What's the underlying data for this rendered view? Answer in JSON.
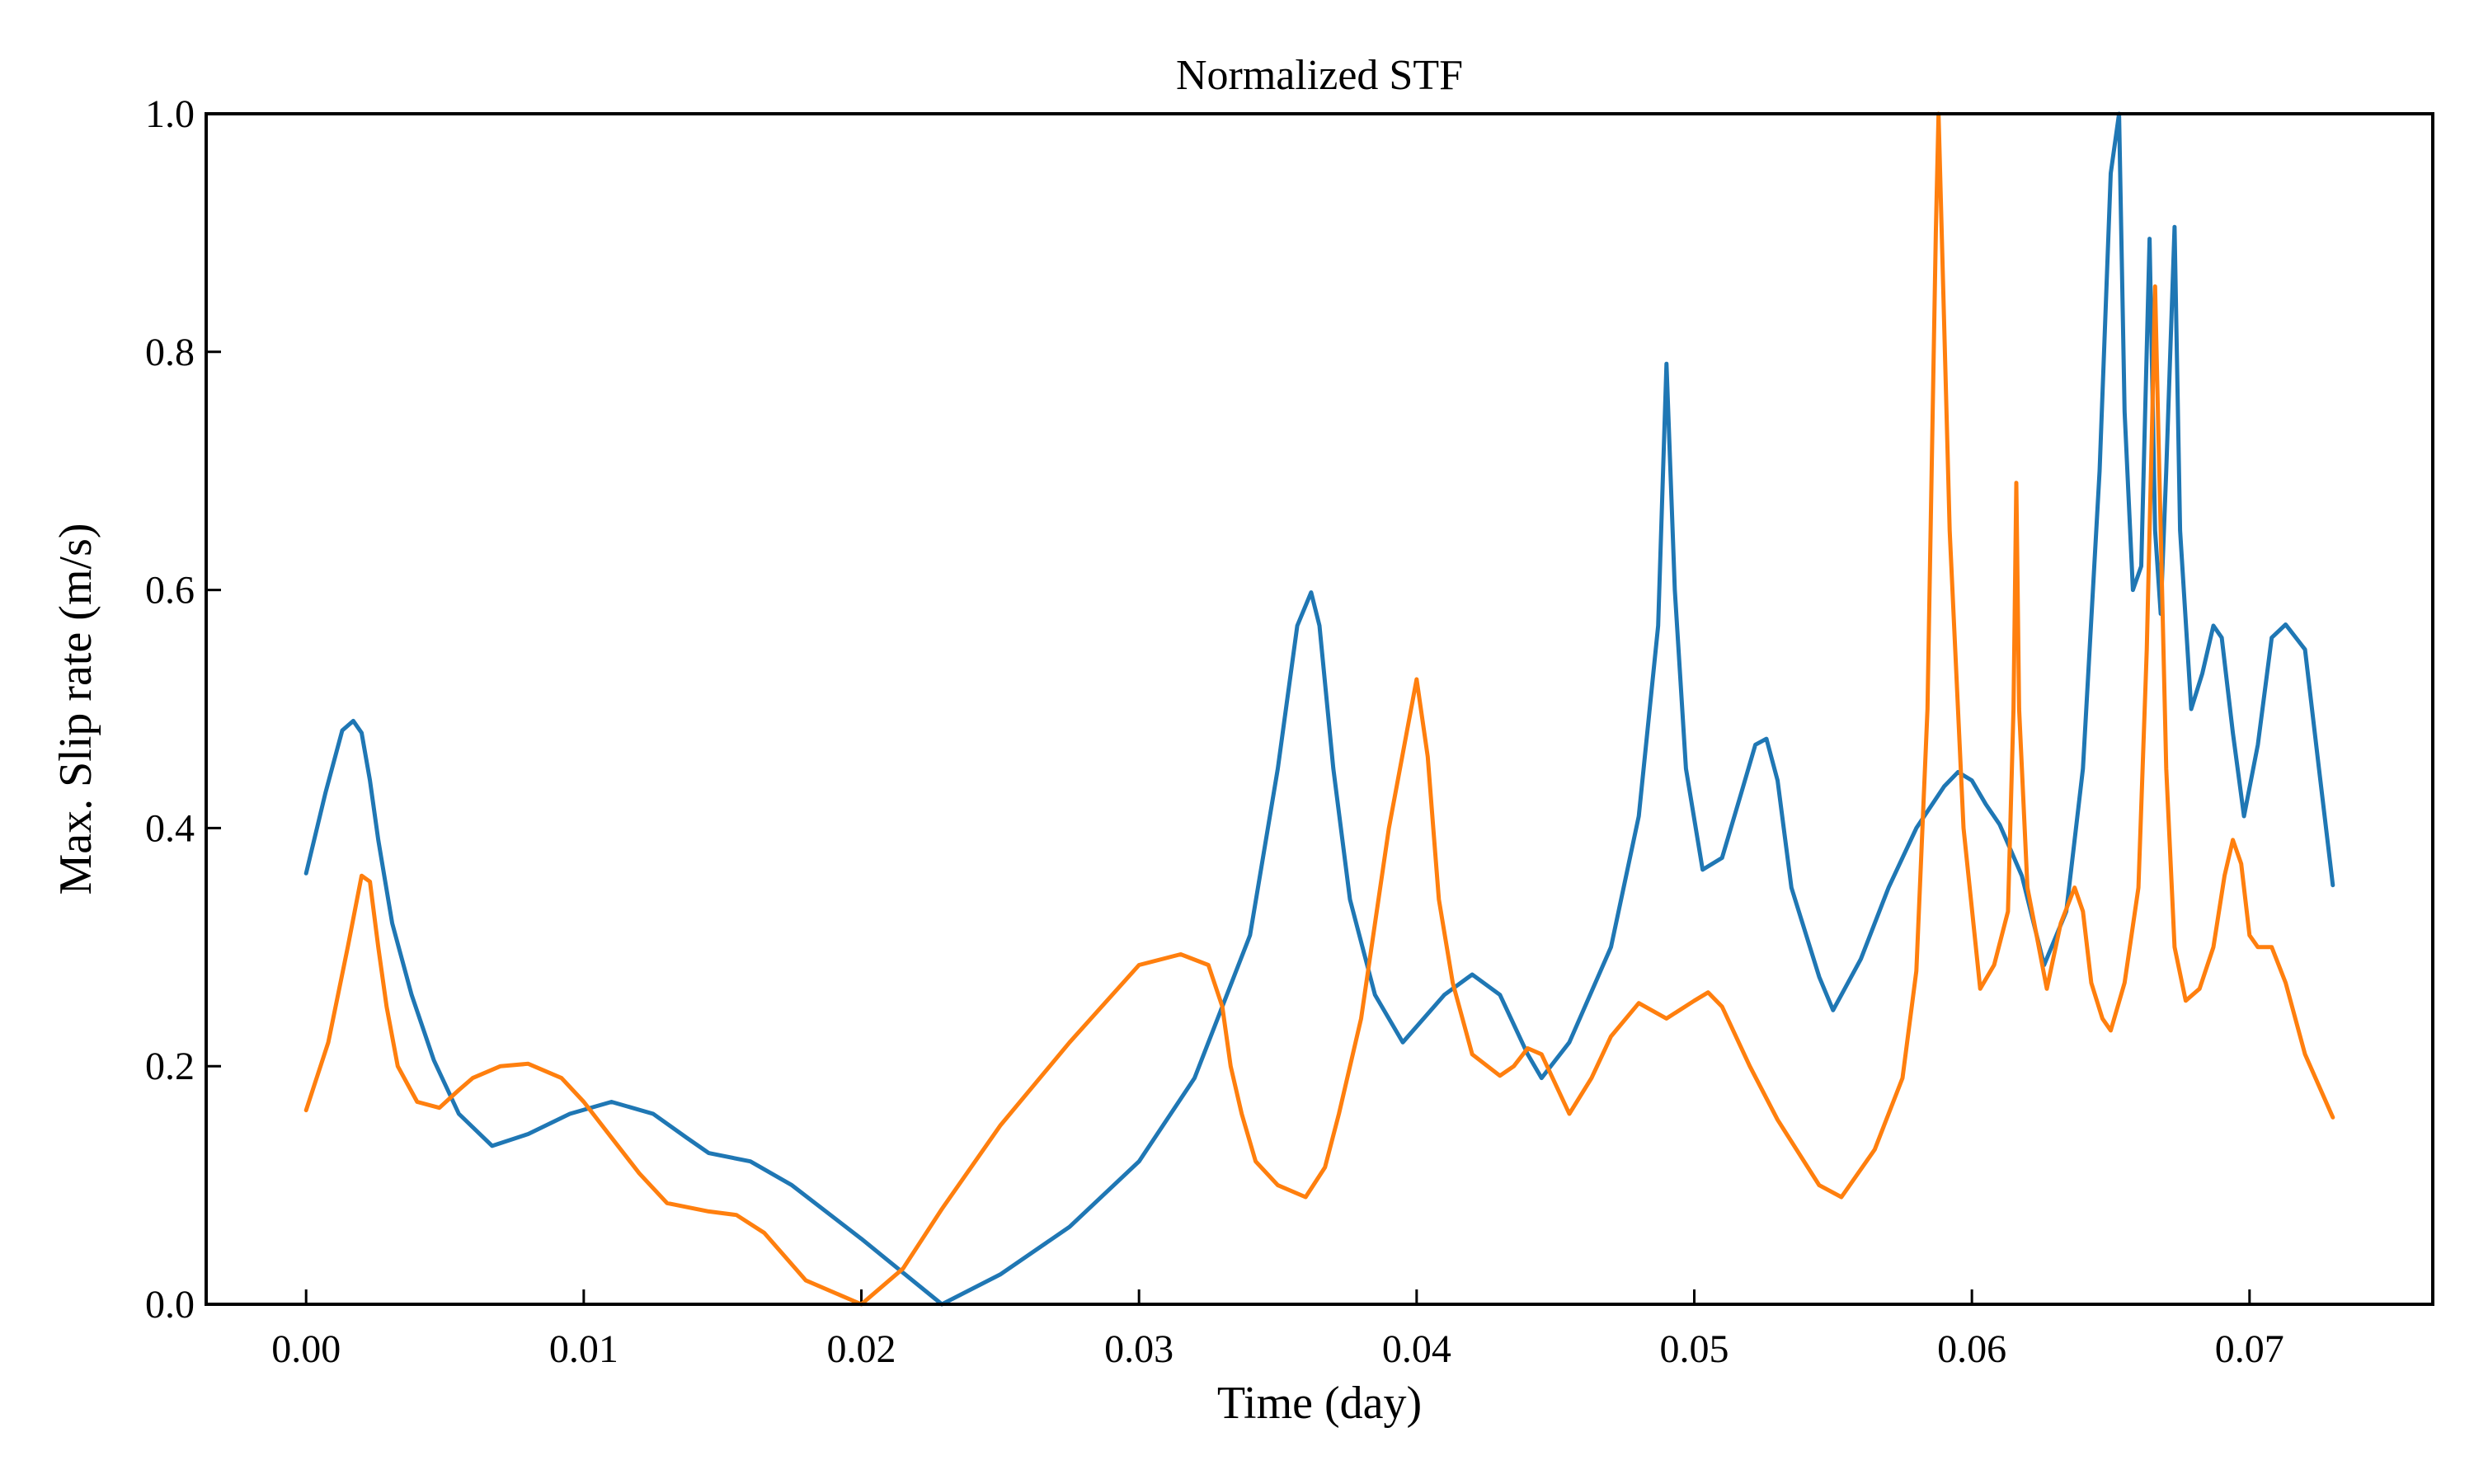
{
  "chart_data": {
    "type": "line",
    "title": "Normalized STF",
    "xlabel": "Time (day)",
    "ylabel": "Max. Slip rate (m/s)",
    "xlim": [
      -0.0036,
      0.0766
    ],
    "ylim": [
      0.0,
      1.0
    ],
    "xticks": [
      0.0,
      0.01,
      0.02,
      0.03,
      0.04,
      0.05,
      0.06,
      0.07
    ],
    "xtick_labels": [
      "0.00",
      "0.01",
      "0.02",
      "0.03",
      "0.04",
      "0.05",
      "0.06",
      "0.07"
    ],
    "yticks": [
      0.0,
      0.2,
      0.4,
      0.6,
      0.8,
      1.0
    ],
    "ytick_labels": [
      "0.0",
      "0.2",
      "0.4",
      "0.6",
      "0.8",
      "1.0"
    ],
    "grid": false,
    "legend": "none",
    "series": [
      {
        "color": "#1f77b4",
        "x": [
          0.0,
          0.0007,
          0.0013,
          0.0017,
          0.002,
          0.0023,
          0.0026,
          0.0031,
          0.0038,
          0.0046,
          0.0055,
          0.0067,
          0.008,
          0.0095,
          0.011,
          0.0125,
          0.0137,
          0.0145,
          0.016,
          0.0175,
          0.02,
          0.0229,
          0.025,
          0.0275,
          0.03,
          0.032,
          0.034,
          0.035,
          0.0357,
          0.0362,
          0.0365,
          0.037,
          0.0376,
          0.0385,
          0.0395,
          0.041,
          0.042,
          0.043,
          0.044,
          0.0445,
          0.0455,
          0.047,
          0.048,
          0.0487,
          0.049,
          0.0493,
          0.0497,
          0.0503,
          0.051,
          0.0517,
          0.0522,
          0.0526,
          0.053,
          0.0535,
          0.0545,
          0.055,
          0.056,
          0.057,
          0.058,
          0.059,
          0.0595,
          0.06,
          0.0605,
          0.061,
          0.0618,
          0.0626,
          0.0634,
          0.064,
          0.0646,
          0.065,
          0.0653,
          0.0655,
          0.0658,
          0.0661,
          0.0664,
          0.0666,
          0.0668,
          0.067,
          0.0673,
          0.0675,
          0.0679,
          0.0683,
          0.0687,
          0.069,
          0.0694,
          0.0698,
          0.0703,
          0.0708,
          0.0713,
          0.0716,
          0.072,
          0.0725,
          0.073
        ],
        "y": [
          0.362,
          0.43,
          0.482,
          0.49,
          0.48,
          0.44,
          0.39,
          0.32,
          0.26,
          0.205,
          0.16,
          0.133,
          0.143,
          0.16,
          0.17,
          0.16,
          0.14,
          0.127,
          0.12,
          0.1,
          0.055,
          0.0,
          0.025,
          0.065,
          0.12,
          0.19,
          0.31,
          0.45,
          0.57,
          0.598,
          0.57,
          0.45,
          0.34,
          0.26,
          0.22,
          0.26,
          0.277,
          0.26,
          0.21,
          0.19,
          0.22,
          0.3,
          0.41,
          0.57,
          0.79,
          0.6,
          0.45,
          0.365,
          0.375,
          0.43,
          0.47,
          0.475,
          0.44,
          0.35,
          0.275,
          0.247,
          0.29,
          0.35,
          0.4,
          0.435,
          0.447,
          0.44,
          0.42,
          0.403,
          0.36,
          0.285,
          0.33,
          0.45,
          0.7,
          0.95,
          1.0,
          0.75,
          0.6,
          0.62,
          0.895,
          0.65,
          0.58,
          0.7,
          0.905,
          0.65,
          0.5,
          0.53,
          0.57,
          0.56,
          0.48,
          0.41,
          0.47,
          0.56,
          0.571,
          0.562,
          0.55,
          0.45,
          0.352
        ]
      },
      {
        "color": "#ff7f0e",
        "x": [
          0.0,
          0.0008,
          0.0015,
          0.002,
          0.0023,
          0.0026,
          0.0029,
          0.0033,
          0.004,
          0.0048,
          0.0055,
          0.006,
          0.007,
          0.008,
          0.0092,
          0.01,
          0.011,
          0.012,
          0.013,
          0.0145,
          0.0155,
          0.0165,
          0.018,
          0.02,
          0.0215,
          0.0229,
          0.025,
          0.0275,
          0.03,
          0.0315,
          0.0325,
          0.033,
          0.0333,
          0.0337,
          0.0342,
          0.035,
          0.036,
          0.0367,
          0.0372,
          0.038,
          0.039,
          0.04,
          0.0404,
          0.0406,
          0.0408,
          0.0413,
          0.042,
          0.043,
          0.0435,
          0.044,
          0.0445,
          0.0455,
          0.0463,
          0.047,
          0.048,
          0.049,
          0.05,
          0.0505,
          0.051,
          0.052,
          0.053,
          0.0545,
          0.0553,
          0.0565,
          0.0575,
          0.058,
          0.0584,
          0.0587,
          0.0588,
          0.0592,
          0.0597,
          0.0603,
          0.0608,
          0.0613,
          0.0615,
          0.0616,
          0.0617,
          0.062,
          0.0627,
          0.0632,
          0.0637,
          0.064,
          0.0643,
          0.0647,
          0.065,
          0.0655,
          0.066,
          0.0663,
          0.0665,
          0.0666,
          0.0667,
          0.067,
          0.0673,
          0.0677,
          0.0682,
          0.0687,
          0.0691,
          0.0694,
          0.0697,
          0.07,
          0.0703,
          0.0708,
          0.0713,
          0.072,
          0.073
        ],
        "y": [
          0.163,
          0.22,
          0.3,
          0.36,
          0.355,
          0.3,
          0.25,
          0.2,
          0.17,
          0.165,
          0.18,
          0.19,
          0.2,
          0.202,
          0.19,
          0.17,
          0.14,
          0.11,
          0.085,
          0.078,
          0.075,
          0.06,
          0.02,
          0.0,
          0.03,
          0.08,
          0.15,
          0.22,
          0.285,
          0.294,
          0.285,
          0.25,
          0.2,
          0.16,
          0.12,
          0.1,
          0.09,
          0.115,
          0.16,
          0.24,
          0.4,
          0.525,
          0.46,
          0.4,
          0.34,
          0.27,
          0.21,
          0.192,
          0.2,
          0.215,
          0.21,
          0.16,
          0.19,
          0.225,
          0.253,
          0.24,
          0.255,
          0.262,
          0.25,
          0.2,
          0.155,
          0.1,
          0.09,
          0.13,
          0.19,
          0.28,
          0.5,
          0.9,
          1.0,
          0.65,
          0.4,
          0.265,
          0.285,
          0.33,
          0.5,
          0.69,
          0.5,
          0.35,
          0.265,
          0.32,
          0.35,
          0.33,
          0.27,
          0.24,
          0.23,
          0.27,
          0.35,
          0.55,
          0.75,
          0.855,
          0.75,
          0.45,
          0.3,
          0.255,
          0.265,
          0.3,
          0.36,
          0.39,
          0.37,
          0.31,
          0.3,
          0.3,
          0.27,
          0.21,
          0.157
        ]
      }
    ]
  }
}
